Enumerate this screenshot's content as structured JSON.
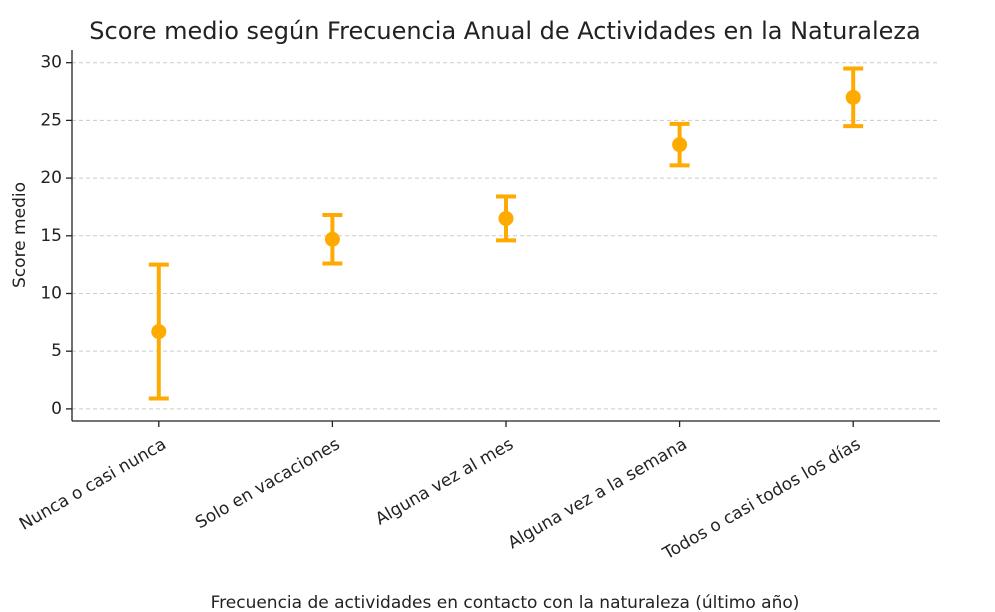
{
  "chart_data": {
    "type": "errorbar",
    "title": "Score medio según Frecuencia Anual de Actividades en la Naturaleza",
    "x_label": "Frecuencia de actividades en contacto con la naturaleza (último año)",
    "y_label": "Score medio",
    "categories": [
      "Nunca o casi nunca",
      "Solo en vacaciones",
      "Alguna vez al mes",
      "Alguna vez a la semana",
      "Todos o casi todos los días"
    ],
    "values": [
      6.7,
      14.7,
      16.5,
      22.9,
      27.0
    ],
    "errors": [
      5.8,
      2.1,
      1.9,
      1.8,
      2.5
    ],
    "color": "#ffaa00",
    "ylim": [
      -1.05,
      31.1
    ],
    "yticks": [
      0,
      5,
      10,
      15,
      20,
      25,
      30
    ],
    "grid": true
  }
}
